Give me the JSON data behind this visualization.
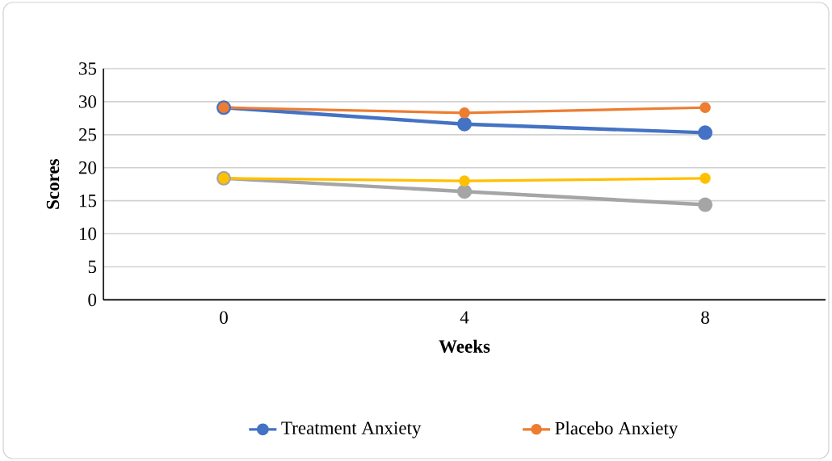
{
  "chart_data": {
    "type": "line",
    "xlabel": "Weeks",
    "ylabel": "Scores",
    "categories": [
      "0",
      "4",
      "8"
    ],
    "series": [
      {
        "name": "Treatment Anxiety",
        "color": "#4472c4",
        "values": [
          29.1,
          26.6,
          25.3
        ]
      },
      {
        "name": "Placebo Anxiety",
        "color": "#ed7d31",
        "values": [
          29.1,
          28.3,
          29.1
        ]
      },
      {
        "color": "#a5a5a5",
        "values": [
          18.4,
          16.4,
          14.4
        ]
      },
      {
        "color": "#ffc000",
        "values": [
          18.4,
          18.0,
          18.4
        ]
      }
    ],
    "ylim": [
      0,
      35
    ],
    "yticks": [
      0,
      5,
      10,
      15,
      20,
      25,
      30,
      35
    ],
    "grid": "y",
    "legend": "bottom",
    "marker": "circle",
    "line_style": "solid"
  }
}
